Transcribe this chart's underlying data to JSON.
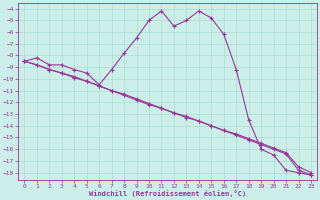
{
  "xlabel": "Windchill (Refroidissement éolien,°C)",
  "background_color": "#cceee8",
  "grid_color": "#aaddcc",
  "line_color": "#993399",
  "x_ticks": [
    0,
    1,
    2,
    3,
    4,
    5,
    6,
    7,
    8,
    9,
    10,
    11,
    12,
    13,
    14,
    15,
    16,
    17,
    18,
    19,
    20,
    21,
    22,
    23
  ],
  "y_ticks": [
    -4,
    -5,
    -6,
    -7,
    -8,
    -9,
    -10,
    -11,
    -12,
    -13,
    -14,
    -15,
    -16,
    -17,
    -18
  ],
  "ylim": [
    -18.6,
    -3.5
  ],
  "xlim": [
    -0.5,
    23.5
  ],
  "line1_x": [
    0,
    1,
    2,
    3,
    4,
    5,
    6,
    7,
    8,
    9,
    10,
    11,
    12,
    13,
    14,
    15,
    16,
    17,
    18,
    19,
    20,
    21,
    22,
    23
  ],
  "line1_y": [
    -8.5,
    -8.2,
    -8.8,
    -8.8,
    -9.2,
    -9.5,
    -10.5,
    -9.2,
    -7.8,
    -6.5,
    -5.0,
    -4.2,
    -5.5,
    -5.0,
    -4.2,
    -4.8,
    -6.2,
    -9.2,
    -13.5,
    -16.0,
    -16.5,
    -17.8,
    -18.0,
    -18.2
  ],
  "line2_x": [
    0,
    1,
    2,
    3,
    4,
    5,
    6,
    7,
    8,
    9,
    10,
    11,
    12,
    13,
    14,
    15,
    16,
    17,
    18,
    19,
    20,
    21,
    22,
    23
  ],
  "line2_y": [
    -8.5,
    -8.8,
    -9.2,
    -9.5,
    -9.8,
    -10.2,
    -10.6,
    -11.0,
    -11.4,
    -11.8,
    -12.2,
    -12.5,
    -12.9,
    -13.3,
    -13.6,
    -14.0,
    -14.4,
    -14.8,
    -15.2,
    -15.6,
    -16.0,
    -16.4,
    -17.8,
    -18.2
  ],
  "line3_x": [
    0,
    1,
    2,
    3,
    4,
    5,
    6,
    7,
    8,
    9,
    10,
    11,
    12,
    13,
    14,
    15,
    16,
    17,
    18,
    19,
    20,
    21,
    22,
    23
  ],
  "line3_y": [
    -8.5,
    -8.8,
    -9.2,
    -9.5,
    -9.9,
    -10.2,
    -10.6,
    -11.0,
    -11.3,
    -11.7,
    -12.1,
    -12.5,
    -12.9,
    -13.2,
    -13.6,
    -14.0,
    -14.4,
    -14.7,
    -15.1,
    -15.5,
    -15.9,
    -16.3,
    -17.5,
    -18.0
  ]
}
